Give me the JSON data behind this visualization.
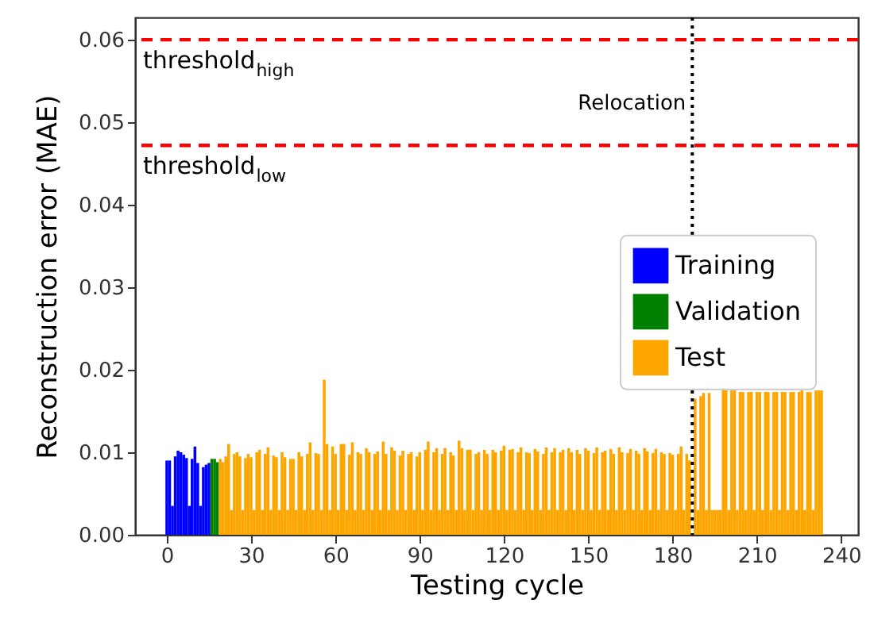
{
  "chart_data": {
    "type": "bar",
    "xlabel": "Testing cycle",
    "ylabel": "Reconstruction error (MAE)",
    "xlim": [
      -11.3,
      246
    ],
    "ylim": [
      0,
      0.0627
    ],
    "xticks": [
      0,
      30,
      60,
      90,
      120,
      150,
      180,
      210,
      240
    ],
    "yticks": [
      {
        "value": 0,
        "label": "0.00"
      },
      {
        "value": 0.01,
        "label": "0.01"
      },
      {
        "value": 0.02,
        "label": "0.02"
      },
      {
        "value": 0.03,
        "label": "0.03"
      },
      {
        "value": 0.04,
        "label": "0.04"
      },
      {
        "value": 0.05,
        "label": "0.05"
      },
      {
        "value": 0.06,
        "label": "0.06"
      }
    ],
    "grid": false,
    "legend": "right",
    "series": [
      {
        "name": "Training",
        "color": "#0000ff",
        "x": [
          0,
          1,
          2,
          3,
          4,
          5,
          6,
          7,
          8,
          9,
          10,
          11,
          12,
          13,
          14,
          15
        ],
        "values": [
          0.009,
          0.009,
          0.0035,
          0.0095,
          0.0102,
          0.01,
          0.0097,
          0.0093,
          0.0035,
          0.0092,
          0.0107,
          0.0087,
          0.0035,
          0.0082,
          0.0085,
          0.0087
        ]
      },
      {
        "name": "Validation",
        "color": "#008000",
        "x": [
          16,
          17,
          18
        ],
        "values": [
          0.0092,
          0.0092,
          0.0088
        ]
      },
      {
        "name": "Test",
        "color": "#ffa500",
        "x": [
          19,
          20,
          21,
          22,
          23,
          24,
          25,
          26,
          27,
          28,
          29,
          30,
          31,
          32,
          33,
          34,
          35,
          36,
          37,
          38,
          39,
          40,
          41,
          42,
          43,
          44,
          45,
          46,
          47,
          48,
          49,
          50,
          51,
          52,
          53,
          54,
          55,
          56,
          57,
          58,
          59,
          60,
          61,
          62,
          63,
          64,
          65,
          66,
          67,
          68,
          69,
          70,
          71,
          72,
          73,
          74,
          75,
          76,
          77,
          78,
          79,
          80,
          81,
          82,
          83,
          84,
          85,
          86,
          87,
          88,
          89,
          90,
          91,
          92,
          93,
          94,
          95,
          96,
          97,
          98,
          99,
          100,
          101,
          102,
          103,
          104,
          105,
          106,
          107,
          108,
          109,
          110,
          111,
          112,
          113,
          114,
          115,
          116,
          117,
          118,
          119,
          120,
          121,
          122,
          123,
          124,
          125,
          126,
          127,
          128,
          129,
          130,
          131,
          132,
          133,
          134,
          135,
          136,
          137,
          138,
          139,
          140,
          141,
          142,
          143,
          144,
          145,
          146,
          147,
          148,
          149,
          150,
          151,
          152,
          153,
          154,
          155,
          156,
          157,
          158,
          159,
          160,
          161,
          162,
          163,
          164,
          165,
          166,
          167,
          168,
          169,
          170,
          171,
          172,
          173,
          174,
          175,
          176,
          177,
          178,
          179,
          180,
          181,
          182,
          183,
          184,
          185,
          186,
          187,
          188,
          189,
          190,
          191,
          192,
          193,
          194,
          195,
          196,
          197,
          198,
          199,
          200,
          201,
          202,
          203,
          204,
          205,
          206,
          207,
          208,
          209,
          210,
          211,
          212,
          213,
          214,
          215,
          216,
          217,
          218,
          219,
          220,
          221,
          222,
          223,
          224,
          225,
          226,
          227,
          228,
          229,
          230,
          231,
          232,
          233
        ],
        "values": [
          0.0092,
          0.0088,
          0.0095,
          0.011,
          0.003,
          0.0098,
          0.01,
          0.0095,
          0.003,
          0.0093,
          0.0098,
          0.0094,
          0.003,
          0.01,
          0.0103,
          0.003,
          0.0098,
          0.0106,
          0.003,
          0.0096,
          0.0094,
          0.003,
          0.01,
          0.0094,
          0.003,
          0.0092,
          0.0092,
          0.003,
          0.01,
          0.0095,
          0.003,
          0.0098,
          0.0112,
          0.003,
          0.0099,
          0.0098,
          0.003,
          0.0188,
          0.011,
          0.003,
          0.0107,
          0.0098,
          0.003,
          0.011,
          0.011,
          0.003,
          0.0097,
          0.0112,
          0.003,
          0.01,
          0.0098,
          0.003,
          0.0105,
          0.01,
          0.003,
          0.0098,
          0.0101,
          0.003,
          0.0113,
          0.0098,
          0.003,
          0.0106,
          0.0102,
          0.003,
          0.0096,
          0.0102,
          0.003,
          0.0098,
          0.01,
          0.003,
          0.0095,
          0.01,
          0.003,
          0.0103,
          0.0113,
          0.003,
          0.01,
          0.0105,
          0.003,
          0.0098,
          0.0105,
          0.003,
          0.01,
          0.0096,
          0.003,
          0.0114,
          0.0105,
          0.003,
          0.0103,
          0.0103,
          0.003,
          0.0098,
          0.01,
          0.003,
          0.0103,
          0.0098,
          0.003,
          0.0103,
          0.01,
          0.003,
          0.0102,
          0.0108,
          0.003,
          0.0103,
          0.0104,
          0.003,
          0.01,
          0.0106,
          0.003,
          0.01,
          0.0099,
          0.003,
          0.0104,
          0.0101,
          0.003,
          0.0098,
          0.0106,
          0.003,
          0.01,
          0.0105,
          0.003,
          0.01,
          0.0103,
          0.003,
          0.0105,
          0.01,
          0.003,
          0.0103,
          0.0098,
          0.003,
          0.0105,
          0.0102,
          0.003,
          0.0099,
          0.0106,
          0.003,
          0.01,
          0.0102,
          0.003,
          0.0104,
          0.0098,
          0.003,
          0.0106,
          0.01,
          0.003,
          0.0099,
          0.0104,
          0.003,
          0.0102,
          0.0098,
          0.003,
          0.0105,
          0.0101,
          0.003,
          0.0099,
          0.0104,
          0.003,
          0.01,
          0.0098,
          0.003,
          0.0099,
          0.0097,
          0.003,
          0.0098,
          0.0107,
          0.003,
          0.0098,
          0.009,
          null,
          0.0165,
          0.003,
          0.0168,
          0.0172,
          0.003,
          0.0172,
          0.003,
          0.003,
          0.003,
          0.003,
          0.0178,
          0.0175,
          0.003,
          0.0175,
          0.0175,
          0.003,
          0.0173,
          0.0173,
          0.003,
          0.0173,
          0.0173,
          0.003,
          0.0173,
          0.0173,
          0.003,
          0.0173,
          0.0173,
          0.003,
          0.0173,
          0.0173,
          0.003,
          0.0173,
          0.0173,
          0.003,
          0.0173,
          0.0173,
          0.003,
          0.0173,
          0.0175,
          0.003,
          0.0173,
          0.0173,
          0.003,
          0.0175,
          0.0175,
          0.0175
        ]
      }
    ],
    "ref_lines": [
      {
        "axis": "y",
        "value": 0.06,
        "label": "threshold$_{high}$",
        "color": "#ff0000",
        "line_style": "dashed"
      },
      {
        "axis": "y",
        "value": 0.0472,
        "label": "threshold$_{low}$",
        "color": "#ff0000",
        "line_style": "dashed"
      },
      {
        "axis": "x",
        "value": 187,
        "label": "Relocation",
        "color": "#000000",
        "line_style": "dotted"
      }
    ]
  }
}
